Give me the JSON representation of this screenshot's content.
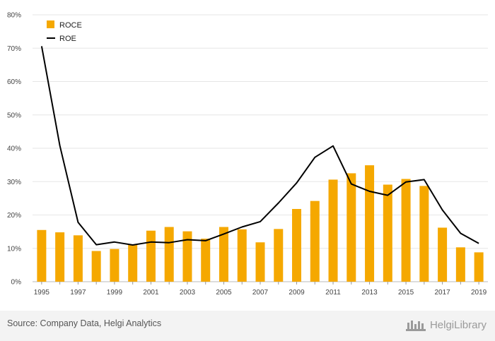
{
  "chart_data": {
    "type": "bar",
    "title": "",
    "xlabel": "",
    "ylabel": "",
    "categories": [
      "1995",
      "1996",
      "1997",
      "1998",
      "1999",
      "2000",
      "2001",
      "2002",
      "2003",
      "2004",
      "2005",
      "2006",
      "2007",
      "2008",
      "2009",
      "2010",
      "2011",
      "2012",
      "2013",
      "2014",
      "2015",
      "2016",
      "2017",
      "2018",
      "2019"
    ],
    "x_tick_labels": [
      "1995",
      "1997",
      "1999",
      "2001",
      "2003",
      "2005",
      "2007",
      "2009",
      "2011",
      "2013",
      "2015",
      "2017",
      "2019"
    ],
    "y_tick_labels": [
      "0%",
      "10%",
      "20%",
      "30%",
      "40%",
      "50%",
      "60%",
      "70%",
      "80%"
    ],
    "ylim": [
      0,
      80
    ],
    "grid": true,
    "legend_position": "top-left",
    "series": [
      {
        "name": "ROCE",
        "type": "bar",
        "color": "#f5a800",
        "values": [
          15.5,
          14.8,
          13.9,
          9.2,
          9.8,
          11.2,
          15.3,
          16.4,
          15.1,
          12.9,
          16.4,
          15.7,
          11.8,
          15.8,
          21.8,
          24.2,
          30.6,
          32.5,
          34.9,
          29.1,
          30.8,
          28.7,
          16.2,
          10.3,
          8.8
        ]
      },
      {
        "name": "ROE",
        "type": "line",
        "color": "#000000",
        "values": [
          70.6,
          40.8,
          17.8,
          11.1,
          11.9,
          11.0,
          11.9,
          11.7,
          12.6,
          12.3,
          14.3,
          16.4,
          18.0,
          23.6,
          29.6,
          37.3,
          40.7,
          29.3,
          27.1,
          25.9,
          29.9,
          30.6,
          21.5,
          14.5,
          11.5
        ]
      }
    ]
  },
  "footer": {
    "source": "Source: Company Data, Helgi Analytics",
    "brand": "HelgiLibrary"
  }
}
